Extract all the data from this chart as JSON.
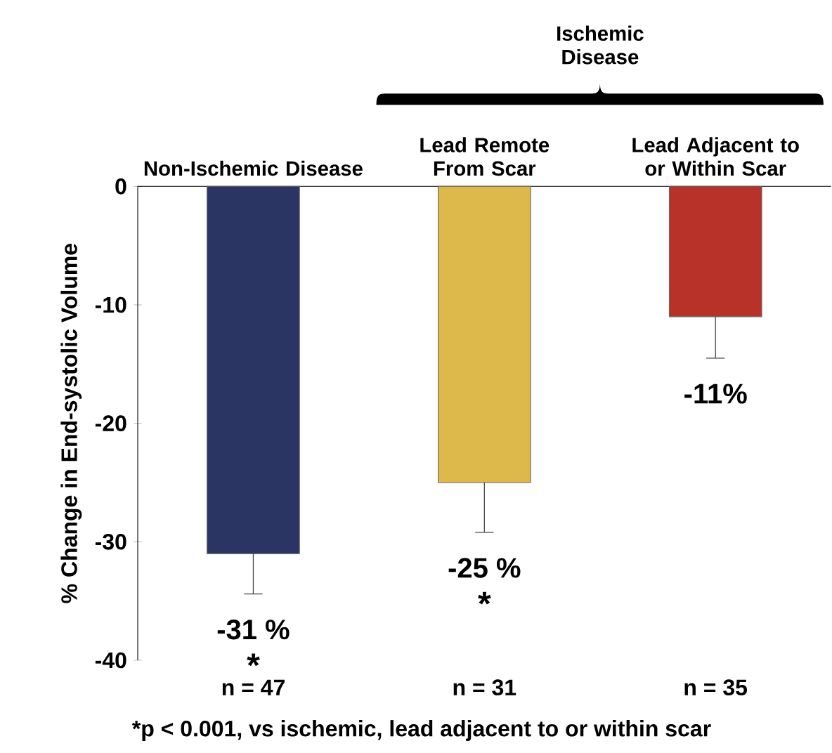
{
  "chart_data": {
    "type": "bar",
    "categories": [
      "Non-Ischemic Disease",
      "Lead Remote From Scar",
      "Lead Adjacent to or Within Scar"
    ],
    "values": [
      -31,
      -25,
      -11
    ],
    "colors": [
      "#2b3563",
      "#dcb94a",
      "#b83229"
    ],
    "errors": [
      [
        -34.4,
        -31
      ],
      [
        -29.2,
        -25
      ],
      [
        -14.5,
        -11
      ]
    ],
    "value_labels": [
      "-31 %",
      "-25 %",
      "-11%"
    ],
    "ylabel": "% Change in End-systolic Volume",
    "ylim": [
      -40,
      0
    ],
    "yticks": [
      -40,
      -30,
      -20,
      -10,
      0
    ],
    "annotations": [
      "Ischemic Disease",
      "n = 47",
      "n = 31",
      "n = 35",
      "*",
      "*",
      "*p < 0.001, vs ischemic, lead adjacent to or within scar"
    ]
  }
}
